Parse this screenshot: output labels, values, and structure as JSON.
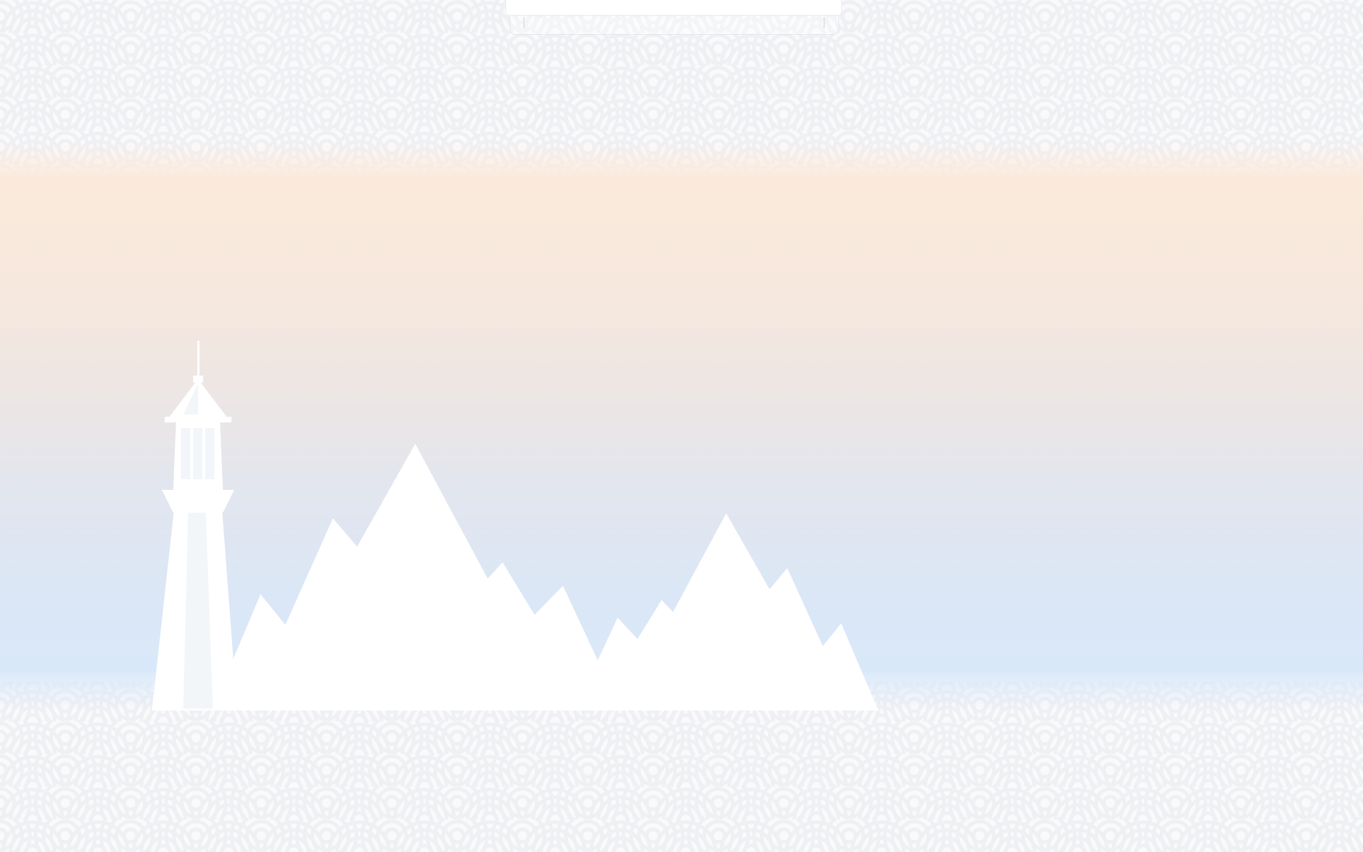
{
  "screen": {
    "description_hidden": "",
    "colors": {
      "band_top": "#fcebdc",
      "band_mid": "#ece6e4",
      "band_bottom": "#d8e8fa",
      "pattern": "#f1f2f4",
      "silhouette": "#ffffff"
    },
    "icons": [
      "lighthouse-icon",
      "mountains-icon"
    ]
  }
}
